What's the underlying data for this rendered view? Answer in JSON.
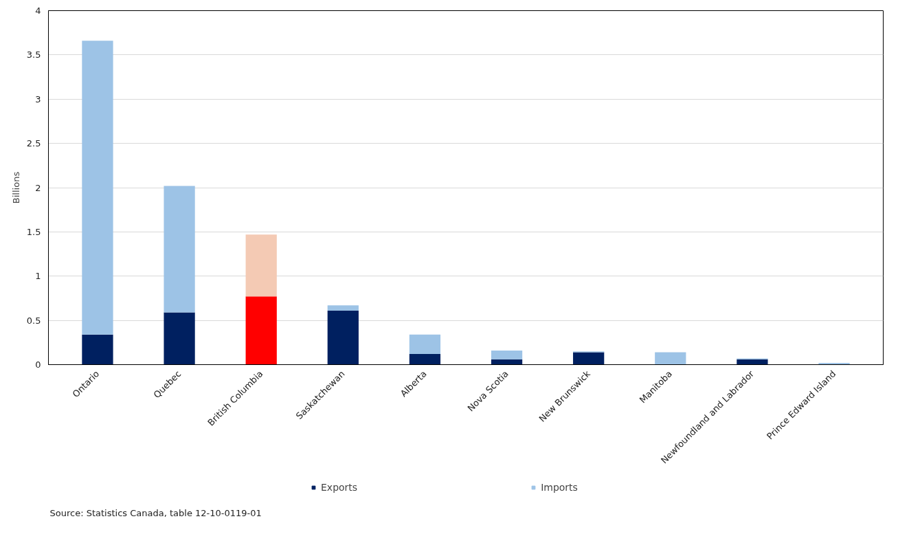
{
  "chart_data": {
    "type": "bar",
    "stacked": true,
    "ylabel": "Billions",
    "categories": [
      "Ontario",
      "Quebec",
      "British Columbia",
      "Saskatchewan",
      "Alberta",
      "Nova Scotia",
      "New Brunswick",
      "Manitoba",
      "Newfoundland and Labrador",
      "Prince Edward Island"
    ],
    "series": [
      {
        "name": "Exports",
        "color": "#002060",
        "colors": [
          "#002060",
          "#002060",
          "#ff0000",
          "#002060",
          "#002060",
          "#002060",
          "#002060",
          "#002060",
          "#002060",
          "#002060"
        ],
        "values": [
          0.34,
          0.59,
          0.77,
          0.61,
          0.12,
          0.06,
          0.14,
          0,
          0.06,
          0
        ]
      },
      {
        "name": "Imports",
        "color": "#9dc3e6",
        "colors": [
          "#9dc3e6",
          "#9dc3e6",
          "#f4cab4",
          "#9dc3e6",
          "#9dc3e6",
          "#9dc3e6",
          "#9dc3e6",
          "#9dc3e6",
          "#9dc3e6",
          "#9dc3e6"
        ],
        "values": [
          3.32,
          1.43,
          0.7,
          0.06,
          0.22,
          0.1,
          0.01,
          0.14,
          0.01,
          0.02
        ]
      }
    ],
    "ylim": [
      0,
      4
    ],
    "yticks": [
      0,
      0.5,
      1,
      1.5,
      2,
      2.5,
      3,
      3.5,
      4
    ],
    "grid": "y",
    "legend": "bottom",
    "annotations": [
      "Source: Statistics Canada, table 12-10-0119-01"
    ]
  }
}
